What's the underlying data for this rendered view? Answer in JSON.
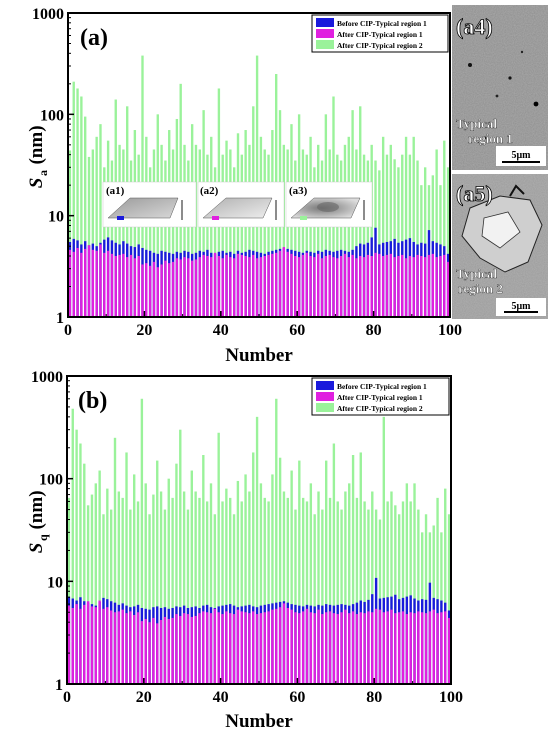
{
  "chart_data": [
    {
      "type": "bar",
      "panel_label": "(a)",
      "xlabel": "Number",
      "ylabel": "S",
      "ylabel_sub": "a",
      "ylabel_unit": "(nm)",
      "yscale": "log",
      "ylim": [
        1,
        1000
      ],
      "xlim": [
        0,
        100
      ],
      "xticks": [
        "0",
        "20",
        "40",
        "60",
        "80",
        "100"
      ],
      "yticks": [
        "1",
        "10",
        "100",
        "1000"
      ],
      "legend_position": "top-right",
      "series": [
        {
          "name": "Before CIP-Typical region 1",
          "color": "#1a1adc",
          "values": [
            5.5,
            5.9,
            5.7,
            5.2,
            5.6,
            5.1,
            5.3,
            5.0,
            5.4,
            5.8,
            6.1,
            5.7,
            5.4,
            5.2,
            5.6,
            5.3,
            5.0,
            4.9,
            5.2,
            4.8,
            4.6,
            4.5,
            4.3,
            4.2,
            4.5,
            4.4,
            4.3,
            4.2,
            4.4,
            4.3,
            4.5,
            4.4,
            4.2,
            4.3,
            4.5,
            4.4,
            4.6,
            4.3,
            4.2,
            4.4,
            4.5,
            4.3,
            4.4,
            4.2,
            4.5,
            4.3,
            4.4,
            4.6,
            4.5,
            4.4,
            4.3,
            4.2,
            4.4,
            4.5,
            4.6,
            4.7,
            4.8,
            4.7,
            4.6,
            4.5,
            4.4,
            4.3,
            4.5,
            4.4,
            4.3,
            4.5,
            4.4,
            4.6,
            4.5,
            4.4,
            4.5,
            4.6,
            4.5,
            4.4,
            4.6,
            5.0,
            5.3,
            5.2,
            5.4,
            6.1,
            7.6,
            5.2,
            5.4,
            5.5,
            5.6,
            5.9,
            5.4,
            5.6,
            5.8,
            6.0,
            5.5,
            5.2,
            5.4,
            5.3,
            7.2,
            5.6,
            5.4,
            5.2,
            5.0,
            4.2
          ]
        },
        {
          "name": "After CIP-Typical region 1",
          "color": "#e020e0",
          "values": [
            4.6,
            4.4,
            4.8,
            4.3,
            4.7,
            5.1,
            4.6,
            4.5,
            5.2,
            4.3,
            4.5,
            4.2,
            4.0,
            4.1,
            4.2,
            3.9,
            4.1,
            3.8,
            4.0,
            3.3,
            3.4,
            3.2,
            3.5,
            3.1,
            3.3,
            3.6,
            3.4,
            3.5,
            3.8,
            3.7,
            3.9,
            3.8,
            3.6,
            3.7,
            3.9,
            4.1,
            4.0,
            3.9,
            4.3,
            4.0,
            3.8,
            4.1,
            3.9,
            3.8,
            4.2,
            4.1,
            4.0,
            3.9,
            4.1,
            3.8,
            3.9,
            4.0,
            4.1,
            4.2,
            4.3,
            4.5,
            4.9,
            4.4,
            4.2,
            4.0,
            3.9,
            4.1,
            4.3,
            4.0,
            3.9,
            4.2,
            3.8,
            4.0,
            4.1,
            3.9,
            3.8,
            4.0,
            4.2,
            3.9,
            4.1,
            3.8,
            4.0,
            3.9,
            4.1,
            4.0,
            4.3,
            4.2,
            4.0,
            4.1,
            4.2,
            3.9,
            4.0,
            4.1,
            3.8,
            4.0,
            3.9,
            4.1,
            4.0,
            3.9,
            4.1,
            4.2,
            3.9,
            4.0,
            4.1,
            3.5
          ]
        },
        {
          "name": "After CIP-Typical region 2",
          "color": "#9af29a",
          "values": [
            44,
            210,
            180,
            150,
            95,
            38,
            45,
            60,
            80,
            30,
            55,
            35,
            140,
            50,
            45,
            120,
            35,
            70,
            40,
            380,
            60,
            30,
            45,
            100,
            50,
            35,
            70,
            45,
            90,
            200,
            50,
            35,
            80,
            50,
            45,
            110,
            40,
            60,
            30,
            180,
            40,
            55,
            45,
            30,
            65,
            40,
            70,
            50,
            120,
            380,
            60,
            45,
            40,
            70,
            250,
            110,
            50,
            45,
            80,
            35,
            100,
            45,
            40,
            60,
            30,
            50,
            35,
            100,
            45,
            150,
            40,
            35,
            50,
            60,
            110,
            45,
            120,
            40,
            35,
            50,
            35,
            28,
            60,
            40,
            50,
            36,
            30,
            40,
            60,
            40,
            60,
            35,
            20,
            30,
            20,
            25,
            45,
            20,
            55,
            30
          ]
        }
      ],
      "insets": [
        "(a1)",
        "(a2)",
        "(a3)"
      ]
    },
    {
      "type": "bar",
      "panel_label": "(b)",
      "xlabel": "Number",
      "ylabel": "S",
      "ylabel_sub": "q",
      "ylabel_unit": "(nm)",
      "yscale": "log",
      "ylim": [
        1,
        1000
      ],
      "xlim": [
        0,
        100
      ],
      "xticks": [
        "0",
        "20",
        "40",
        "60",
        "80",
        "100"
      ],
      "yticks": [
        "1",
        "10",
        "100",
        "1000"
      ],
      "legend_position": "top-right",
      "series": [
        {
          "name": "Before CIP-Typical region 1",
          "color": "#1a1adc",
          "values": [
            7.1,
            6.8,
            6.5,
            7.0,
            6.4,
            6.2,
            6.0,
            5.8,
            6.3,
            6.9,
            6.7,
            6.4,
            6.2,
            5.9,
            6.1,
            5.8,
            5.6,
            5.7,
            5.9,
            5.5,
            5.4,
            5.3,
            5.6,
            5.7,
            5.5,
            5.6,
            5.4,
            5.5,
            5.7,
            5.6,
            5.8,
            5.5,
            5.6,
            5.7,
            5.5,
            5.8,
            5.9,
            5.6,
            5.5,
            5.7,
            5.8,
            5.9,
            6.0,
            5.8,
            5.6,
            5.7,
            5.8,
            5.9,
            5.7,
            5.6,
            5.8,
            5.9,
            6.0,
            6.1,
            6.2,
            6.3,
            6.4,
            6.2,
            6.0,
            5.9,
            5.8,
            5.7,
            5.9,
            5.8,
            5.7,
            5.9,
            5.8,
            6.0,
            5.9,
            5.8,
            5.9,
            6.0,
            5.9,
            5.8,
            6.0,
            6.2,
            6.5,
            6.3,
            6.6,
            7.5,
            10.8,
            6.8,
            6.9,
            7.0,
            7.1,
            7.4,
            6.7,
            6.9,
            7.1,
            7.3,
            6.8,
            6.5,
            6.7,
            6.6,
            9.7,
            6.9,
            6.7,
            6.5,
            6.2,
            5.2
          ]
        },
        {
          "name": "After CIP-Typical region 1",
          "color": "#e020e0",
          "values": [
            5.8,
            5.5,
            6.0,
            5.4,
            5.9,
            6.4,
            5.7,
            5.6,
            6.5,
            5.4,
            5.6,
            5.2,
            5.0,
            5.1,
            5.3,
            4.9,
            5.1,
            4.7,
            5.0,
            4.1,
            4.3,
            4.0,
            4.4,
            3.9,
            4.2,
            4.5,
            4.3,
            4.4,
            4.8,
            4.6,
            4.9,
            4.8,
            4.5,
            4.6,
            4.9,
            5.1,
            5.0,
            4.9,
            5.4,
            5.0,
            4.8,
            5.1,
            4.9,
            4.8,
            5.3,
            5.1,
            5.0,
            4.9,
            5.1,
            4.8,
            4.9,
            5.0,
            5.1,
            5.3,
            5.4,
            5.6,
            6.1,
            5.5,
            5.3,
            5.0,
            4.9,
            5.1,
            5.4,
            5.0,
            4.9,
            5.3,
            4.8,
            5.0,
            5.1,
            4.9,
            4.8,
            5.0,
            5.3,
            4.9,
            5.1,
            4.8,
            5.0,
            4.9,
            5.1,
            5.0,
            5.4,
            5.3,
            5.0,
            5.1,
            5.3,
            4.9,
            5.0,
            5.1,
            4.8,
            5.0,
            4.9,
            5.1,
            5.0,
            4.9,
            5.1,
            5.3,
            4.9,
            5.0,
            5.1,
            4.4
          ]
        },
        {
          "name": "After CIP-Typical region 2",
          "color": "#9af29a",
          "values": [
            65,
            480,
            300,
            220,
            140,
            55,
            70,
            90,
            120,
            45,
            80,
            50,
            250,
            75,
            65,
            180,
            50,
            110,
            60,
            600,
            90,
            45,
            70,
            150,
            75,
            50,
            100,
            65,
            140,
            300,
            75,
            50,
            120,
            75,
            65,
            170,
            60,
            90,
            45,
            280,
            60,
            80,
            65,
            45,
            95,
            60,
            110,
            75,
            180,
            400,
            90,
            65,
            60,
            110,
            600,
            160,
            75,
            65,
            120,
            50,
            150,
            65,
            60,
            90,
            45,
            75,
            50,
            150,
            65,
            220,
            60,
            50,
            75,
            90,
            170,
            65,
            180,
            60,
            50,
            75,
            50,
            40,
            400,
            60,
            75,
            55,
            45,
            60,
            90,
            60,
            90,
            50,
            30,
            45,
            30,
            35,
            65,
            30,
            80,
            45
          ]
        }
      ]
    }
  ],
  "micrographs": [
    {
      "panel_label": "(a4)",
      "region_line1": "Typical",
      "region_line2": "region 1",
      "scale_bar": "5μm"
    },
    {
      "panel_label": "(a5)",
      "region_line1": "Typical",
      "region_line2": "region 2",
      "scale_bar": "5μm"
    }
  ]
}
